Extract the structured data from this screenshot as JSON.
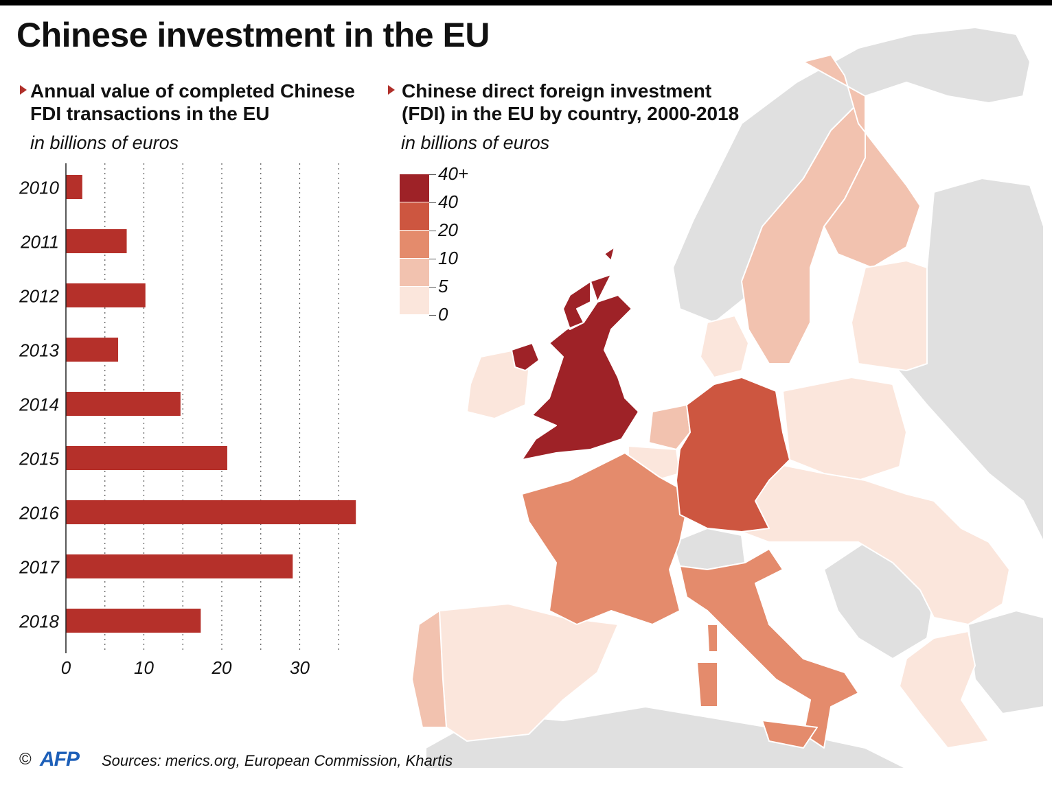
{
  "title": "Chinese investment in the EU",
  "left_subtitle": [
    "Annual value of completed Chinese",
    "FDI transactions in the EU"
  ],
  "left_unit": "in billions of euros",
  "right_subtitle": [
    "Chinese direct foreign investment",
    "(FDI) in the EU by country, 2000-2018"
  ],
  "right_unit": "in billions of euros",
  "credit": {
    "symbol": "©",
    "agency": "AFP"
  },
  "sources": "Sources: merics.org, European Commission, Khartis",
  "colors": {
    "bar": "#b5302a",
    "land_other": "#e0e0e0",
    "accent": "#b0302a"
  },
  "chart_data": [
    {
      "type": "bar",
      "orientation": "horizontal",
      "categories": [
        "2010",
        "2011",
        "2012",
        "2013",
        "2014",
        "2015",
        "2016",
        "2017",
        "2018"
      ],
      "values": [
        2.1,
        7.8,
        10.2,
        6.7,
        14.7,
        20.7,
        37.2,
        29.1,
        17.3
      ],
      "xlim": [
        0,
        37.5
      ],
      "xticks": [
        "0",
        "10",
        "20",
        "30"
      ],
      "xticks_values": [
        0,
        10,
        20,
        30
      ],
      "grid": "dotted vertical lines every 5"
    },
    {
      "type": "choropleth",
      "legend": {
        "labels": [
          "40+",
          "40",
          "20",
          "10",
          "5",
          "0"
        ],
        "colors": [
          "#9e2227",
          "#cd5640",
          "#e48b6c",
          "#f2c2af",
          "#fbe6dc"
        ]
      },
      "regions": [
        {
          "country": "United Kingdom",
          "bin": "40+"
        },
        {
          "country": "Germany",
          "bin": "20-40"
        },
        {
          "country": "France",
          "bin": "10-20"
        },
        {
          "country": "Italy",
          "bin": "10-20"
        },
        {
          "country": "Sweden",
          "bin": "5-10"
        },
        {
          "country": "Finland",
          "bin": "5-10"
        },
        {
          "country": "Portugal",
          "bin": "5-10"
        },
        {
          "country": "Netherlands",
          "bin": "5-10"
        },
        {
          "country": "Spain",
          "bin": "0-5"
        },
        {
          "country": "Ireland",
          "bin": "0-5"
        },
        {
          "country": "Belgium",
          "bin": "0-5"
        },
        {
          "country": "Denmark",
          "bin": "0-5"
        },
        {
          "country": "Poland",
          "bin": "0-5"
        },
        {
          "country": "Baltic states",
          "bin": "0-5"
        },
        {
          "country": "Central & Eastern EU",
          "bin": "0-5"
        },
        {
          "country": "Greece",
          "bin": "0-5"
        }
      ]
    }
  ]
}
